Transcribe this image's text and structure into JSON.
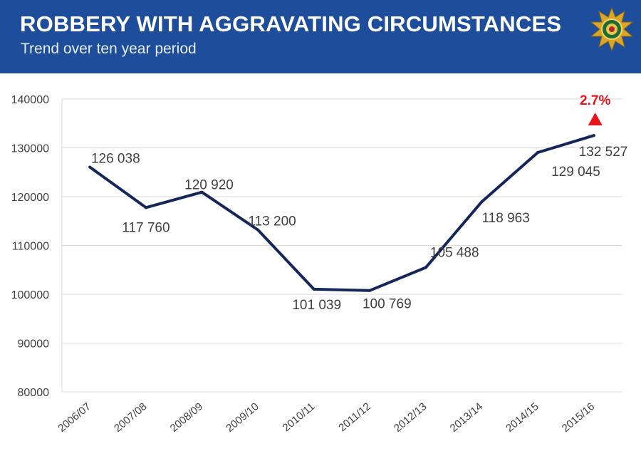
{
  "header": {
    "title": "ROBBERY WITH AGGRAVATING CIRCUMSTANCES",
    "subtitle": "Trend over ten year period",
    "emblem_icon": "police-star-badge-icon"
  },
  "colors": {
    "banner": "#1d4d9b",
    "line": "#15265c",
    "increase": "#e8141b",
    "grid": "#d9d9d9",
    "label_text": "#404040"
  },
  "chart_data": {
    "type": "line",
    "title": "ROBBERY WITH AGGRAVATING CIRCUMSTANCES",
    "subtitle": "Trend over ten year period",
    "xlabel": "",
    "ylabel": "",
    "ylim": [
      80000,
      140000
    ],
    "yticks": [
      80000,
      90000,
      100000,
      110000,
      120000,
      130000,
      140000
    ],
    "ytick_labels": [
      "80000",
      "90000",
      "100000",
      "110000",
      "120000",
      "130000",
      "140000"
    ],
    "grid": true,
    "legend": "none",
    "categories": [
      "2006/07",
      "2007/08",
      "2008/09",
      "2009/10",
      "2010/11",
      "2011/12",
      "2012/13",
      "2013/14",
      "2014/15",
      "2015/16"
    ],
    "series": [
      {
        "name": "Robbery with aggravating circumstances",
        "values": [
          126038,
          117760,
          120920,
          113200,
          101039,
          100769,
          105488,
          118963,
          129045,
          132527
        ],
        "data_labels": [
          "126 038",
          "117 760",
          "120 920",
          "113 200",
          "101 039",
          "100 769",
          "105 488",
          "118 963",
          "129 045",
          "132 527"
        ]
      }
    ],
    "annotation": {
      "text": "2.7%",
      "direction": "increase",
      "category": "2015/16"
    }
  }
}
